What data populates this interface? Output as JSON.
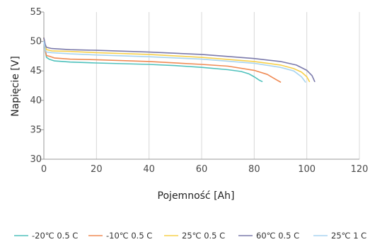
{
  "chart_data": {
    "type": "line",
    "title": "",
    "xlabel": "Pojemność [Ah]",
    "ylabel": "Napięcie [V]",
    "xlim": [
      0,
      120
    ],
    "ylim": [
      30,
      55
    ],
    "x_ticks": [
      0,
      20,
      40,
      60,
      80,
      100,
      120
    ],
    "y_ticks": [
      30,
      35,
      40,
      45,
      50,
      55
    ],
    "x_tick_labels": [
      "0",
      "20",
      "40",
      "60",
      "80",
      "100",
      "120"
    ],
    "y_tick_labels": [
      "30",
      "35",
      "40",
      "45",
      "50",
      "55"
    ],
    "grid": "vertical",
    "legend_position": "bottom",
    "series": [
      {
        "name": "-20℃ 0.5 C",
        "color": "#4fc1bc",
        "points": [
          [
            0,
            50.6
          ],
          [
            0.5,
            48.5
          ],
          [
            1,
            47.3
          ],
          [
            2,
            47.0
          ],
          [
            4,
            46.7
          ],
          [
            10,
            46.5
          ],
          [
            20,
            46.35
          ],
          [
            40,
            46.1
          ],
          [
            50,
            45.9
          ],
          [
            60,
            45.6
          ],
          [
            70,
            45.2
          ],
          [
            75,
            44.9
          ],
          [
            78,
            44.5
          ],
          [
            80,
            44.0
          ],
          [
            82,
            43.4
          ],
          [
            83,
            43.2
          ]
        ]
      },
      {
        "name": "-10℃ 0.5 C",
        "color": "#ef8a54",
        "points": [
          [
            0,
            50.6
          ],
          [
            0.5,
            48.6
          ],
          [
            1,
            47.6
          ],
          [
            2,
            47.5
          ],
          [
            4,
            47.2
          ],
          [
            10,
            47.0
          ],
          [
            20,
            46.9
          ],
          [
            40,
            46.6
          ],
          [
            60,
            46.1
          ],
          [
            70,
            45.8
          ],
          [
            80,
            45.1
          ],
          [
            85,
            44.4
          ],
          [
            88,
            43.6
          ],
          [
            90,
            43.1
          ]
        ]
      },
      {
        "name": "25℃ 0.5 C",
        "color": "#f7d04a",
        "points": [
          [
            0,
            50.6
          ],
          [
            0.5,
            49.2
          ],
          [
            1,
            48.6
          ],
          [
            3,
            48.4
          ],
          [
            10,
            48.3
          ],
          [
            20,
            48.1
          ],
          [
            40,
            47.8
          ],
          [
            60,
            47.3
          ],
          [
            80,
            46.6
          ],
          [
            90,
            46.0
          ],
          [
            95,
            45.4
          ],
          [
            98,
            44.8
          ],
          [
            100,
            44.0
          ],
          [
            101,
            43.2
          ]
        ]
      },
      {
        "name": "60℃ 0.5 C",
        "color": "#7b7aab",
        "points": [
          [
            0,
            50.6
          ],
          [
            0.5,
            49.5
          ],
          [
            1,
            49.0
          ],
          [
            3,
            48.8
          ],
          [
            10,
            48.6
          ],
          [
            20,
            48.5
          ],
          [
            40,
            48.2
          ],
          [
            60,
            47.8
          ],
          [
            80,
            47.1
          ],
          [
            90,
            46.6
          ],
          [
            96,
            46.0
          ],
          [
            100,
            45.1
          ],
          [
            102,
            44.2
          ],
          [
            103,
            43.2
          ]
        ]
      },
      {
        "name": "25℃ 1 C",
        "color": "#a8d4f0",
        "points": [
          [
            0,
            50.0
          ],
          [
            0.5,
            48.6
          ],
          [
            1,
            48.2
          ],
          [
            3,
            48.1
          ],
          [
            10,
            47.9
          ],
          [
            20,
            47.7
          ],
          [
            40,
            47.4
          ],
          [
            60,
            47.0
          ],
          [
            80,
            46.3
          ],
          [
            90,
            45.6
          ],
          [
            95,
            45.0
          ],
          [
            98,
            44.0
          ],
          [
            99.5,
            43.1
          ]
        ]
      }
    ]
  }
}
